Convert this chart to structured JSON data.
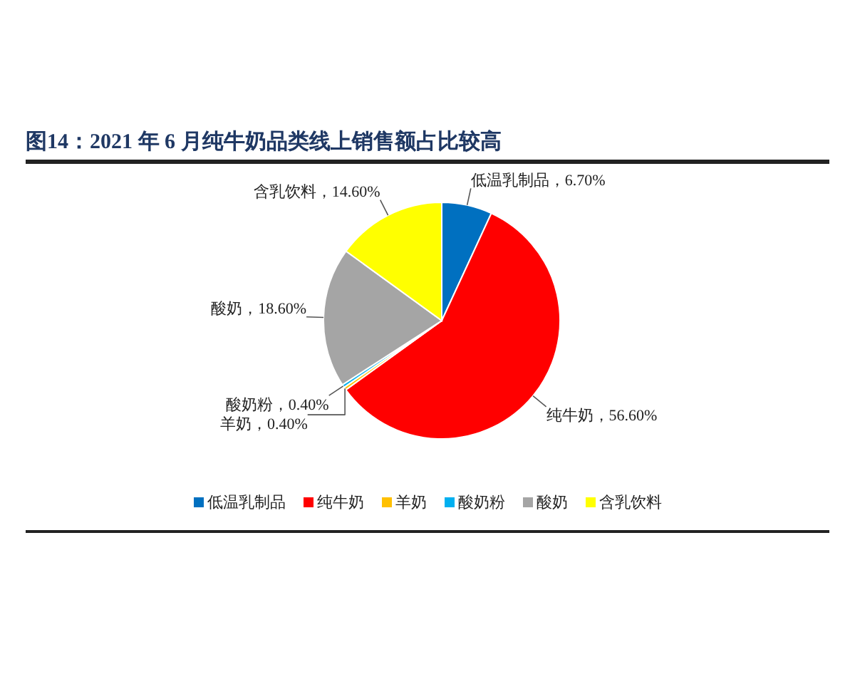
{
  "chart_data": {
    "type": "pie",
    "title": "图14：2021 年 6 月纯牛奶品类线上销售额占比较高",
    "categories": [
      "低温乳制品",
      "纯牛奶",
      "羊奶",
      "酸奶粉",
      "酸奶",
      "含乳饮料"
    ],
    "values": [
      6.7,
      56.6,
      0.4,
      0.4,
      18.6,
      14.6
    ],
    "colors": [
      "#0070c0",
      "#ff0000",
      "#ffc000",
      "#00b0f0",
      "#a5a5a5",
      "#ffff00"
    ],
    "value_labels": [
      "低温乳制品，6.70%",
      "纯牛奶，56.60%",
      "羊奶，0.40%",
      "酸奶粉，0.40%",
      "酸奶，18.60%",
      "含乳饮料，14.60%"
    ],
    "legend": "bottom"
  }
}
